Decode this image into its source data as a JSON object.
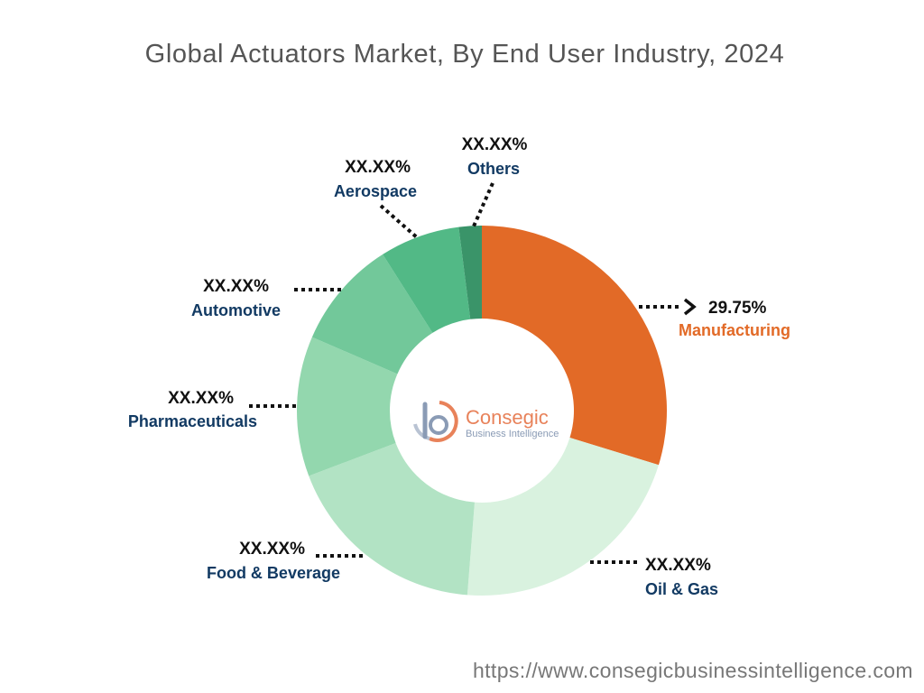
{
  "colors": {
    "manufacturing": "#e26a27",
    "oil_gas": "#d9f2df",
    "food_beverage": "#b2e3c4",
    "pharmaceuticals": "#93d7ae",
    "automotive": "#72c89a",
    "aerospace": "#52b986",
    "others": "#3a9469",
    "label_default": "#123a63",
    "label_highlight": "#e26a27"
  },
  "chart_data": {
    "type": "pie",
    "title": "Global Actuators Market, By End User Industry, 2024",
    "donut": true,
    "series": [
      {
        "name": "Manufacturing",
        "value_label": "29.75%",
        "value": 29.75
      },
      {
        "name": "Oil & Gas",
        "value_label": "XX.XX%",
        "value": 21.5
      },
      {
        "name": "Food & Beverage",
        "value_label": "XX.XX%",
        "value": 18.0
      },
      {
        "name": "Pharmaceuticals",
        "value_label": "XX.XX%",
        "value": 12.25
      },
      {
        "name": "Automotive",
        "value_label": "XX.XX%",
        "value": 9.5
      },
      {
        "name": "Aerospace",
        "value_label": "XX.XX%",
        "value": 7.0
      },
      {
        "name": "Others",
        "value_label": "XX.XX%",
        "value": 2.0
      }
    ]
  },
  "logo": {
    "name": "Consegic",
    "tagline": "Business Intelligence"
  },
  "footer": {
    "url": "https://www.consegicbusinessintelligence.com"
  }
}
